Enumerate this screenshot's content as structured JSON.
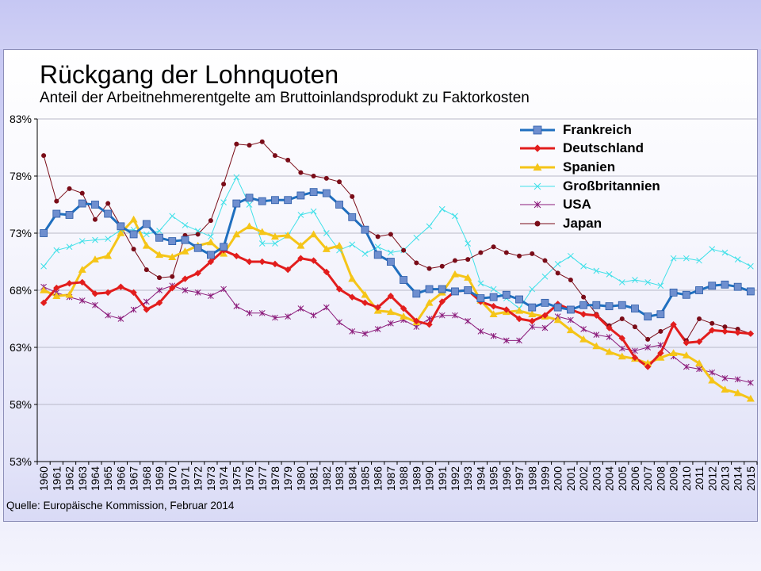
{
  "title": "Rückgang der Lohnquoten",
  "subtitle": "Anteil der Arbeitnehmerentgelte am Bruttoinlandsprodukt zu Faktorkosten",
  "source": "Quelle: Europäische Kommission, Februar 2014",
  "chart_data": {
    "type": "line",
    "title": "Rückgang der Lohnquoten",
    "subtitle": "Anteil der Arbeitnehmerentgelte am Bruttoinlandsprodukt zu Faktorkosten",
    "xlabel": "",
    "ylabel": "",
    "ylim": [
      53,
      83
    ],
    "yticks": [
      83,
      78,
      73,
      68,
      63,
      58,
      53
    ],
    "ytick_labels": [
      "83%",
      "78%",
      "73%",
      "68%",
      "63%",
      "58%",
      "53%"
    ],
    "grid": "horizontal",
    "legend_position": "top-right",
    "x": [
      "1960",
      "1961",
      "1962",
      "1963",
      "1964",
      "1965",
      "1966",
      "1967",
      "1968",
      "1969",
      "1970",
      "1971",
      "1972",
      "1973",
      "1974",
      "1975",
      "1976",
      "1977",
      "1978",
      "1979",
      "1980",
      "1981",
      "1982",
      "1983",
      "1984",
      "1985",
      "1986",
      "1987",
      "1988",
      "1989",
      "1990",
      "1991",
      "1992",
      "1993",
      "1994",
      "1995",
      "1996",
      "1997",
      "1998",
      "1999",
      "2000",
      "2001",
      "2002",
      "2003",
      "2004",
      "2005",
      "2006",
      "2007",
      "2008",
      "2009",
      "2010",
      "2011",
      "2012",
      "2013",
      "2014",
      "2015"
    ],
    "series": [
      {
        "name": "Frankreich",
        "color": "#1f6fbf",
        "marker": "square",
        "values": [
          73.0,
          74.7,
          74.6,
          75.6,
          75.5,
          74.7,
          73.6,
          72.9,
          73.8,
          72.6,
          72.3,
          72.4,
          71.7,
          71.1,
          71.8,
          75.6,
          76.1,
          75.8,
          75.9,
          75.9,
          76.3,
          76.6,
          76.5,
          75.5,
          74.4,
          73.3,
          71.1,
          70.5,
          68.9,
          67.7,
          68.1,
          68.1,
          67.9,
          68.0,
          67.3,
          67.4,
          67.6,
          67.2,
          66.5,
          66.9,
          66.5,
          66.3,
          66.7,
          66.7,
          66.6,
          66.7,
          66.4,
          65.7,
          65.9,
          67.8,
          67.6,
          68.0,
          68.4,
          68.5,
          68.3,
          67.9
        ]
      },
      {
        "name": "Deutschland",
        "color": "#e21d1d",
        "marker": "diamond",
        "values": [
          66.9,
          68.2,
          68.6,
          68.7,
          67.7,
          67.8,
          68.3,
          67.8,
          66.3,
          66.9,
          68.2,
          69.0,
          69.5,
          70.5,
          71.5,
          71.0,
          70.5,
          70.5,
          70.3,
          69.8,
          70.8,
          70.6,
          69.6,
          68.1,
          67.4,
          66.9,
          66.5,
          67.5,
          66.4,
          65.3,
          65.0,
          67.0,
          67.9,
          68.0,
          67.0,
          66.6,
          66.3,
          65.5,
          65.3,
          65.8,
          66.8,
          66.3,
          65.9,
          65.8,
          64.7,
          63.8,
          62.1,
          61.3,
          62.5,
          65.0,
          63.4,
          63.5,
          64.5,
          64.4,
          64.3,
          64.2
        ]
      },
      {
        "name": "Spanien",
        "color": "#f5c518",
        "marker": "triangle",
        "values": [
          68.0,
          67.5,
          67.6,
          69.8,
          70.7,
          71.0,
          73.0,
          74.2,
          71.9,
          71.1,
          70.9,
          71.4,
          71.9,
          72.2,
          71.2,
          72.9,
          73.6,
          73.1,
          72.7,
          72.8,
          71.9,
          72.9,
          71.6,
          71.9,
          69.0,
          67.6,
          66.2,
          66.1,
          65.7,
          65.2,
          66.9,
          67.8,
          69.4,
          69.1,
          67.1,
          65.9,
          66.1,
          66.2,
          65.9,
          65.7,
          65.4,
          64.5,
          63.7,
          63.1,
          62.6,
          62.2,
          62.0,
          61.6,
          62.1,
          62.5,
          62.3,
          61.6,
          60.1,
          59.3,
          59.0,
          58.5
        ]
      },
      {
        "name": "Großbritannien",
        "color": "#3fe0e8",
        "marker": "x",
        "values": [
          70.1,
          71.5,
          71.8,
          72.3,
          72.4,
          72.5,
          73.3,
          73.3,
          72.9,
          73.2,
          74.5,
          73.7,
          73.2,
          72.7,
          75.7,
          77.9,
          75.5,
          72.1,
          72.1,
          72.8,
          74.6,
          74.9,
          73.0,
          71.5,
          72.0,
          71.2,
          71.8,
          71.3,
          71.5,
          72.6,
          73.6,
          75.1,
          74.5,
          72.1,
          68.6,
          68.1,
          67.3,
          66.4,
          68.1,
          69.2,
          70.3,
          71.0,
          70.1,
          69.7,
          69.4,
          68.7,
          68.9,
          68.7,
          68.4,
          70.8,
          70.8,
          70.6,
          71.6,
          71.3,
          70.7,
          70.1
        ]
      },
      {
        "name": "USA",
        "color": "#8b1a7a",
        "marker": "star",
        "values": [
          68.3,
          67.8,
          67.4,
          67.1,
          66.7,
          65.8,
          65.5,
          66.3,
          67.0,
          68.0,
          68.4,
          68.0,
          67.8,
          67.5,
          68.1,
          66.6,
          66.0,
          66.0,
          65.6,
          65.7,
          66.4,
          65.8,
          66.5,
          65.2,
          64.4,
          64.2,
          64.6,
          65.1,
          65.4,
          64.8,
          65.5,
          65.8,
          65.8,
          65.3,
          64.4,
          64.0,
          63.6,
          63.6,
          64.8,
          64.7,
          65.7,
          65.4,
          64.6,
          64.1,
          63.9,
          62.9,
          62.7,
          63.0,
          63.2,
          62.2,
          61.3,
          61.1,
          60.8,
          60.3,
          60.2,
          59.9
        ]
      },
      {
        "name": "Japan",
        "color": "#7a0c18",
        "marker": "circle",
        "values": [
          79.8,
          75.8,
          76.9,
          76.5,
          74.2,
          75.6,
          73.6,
          71.6,
          69.8,
          69.1,
          69.2,
          72.8,
          72.9,
          74.1,
          77.3,
          80.8,
          80.7,
          81.0,
          79.8,
          79.4,
          78.3,
          78.0,
          77.8,
          77.5,
          76.2,
          73.4,
          72.7,
          72.9,
          71.5,
          70.4,
          69.9,
          70.1,
          70.6,
          70.7,
          71.3,
          71.8,
          71.3,
          71.0,
          71.2,
          70.6,
          69.5,
          68.9,
          67.4,
          65.9,
          64.9,
          65.5,
          64.8,
          63.7,
          64.4,
          65.0,
          63.6,
          65.5,
          65.1,
          64.8,
          64.6,
          64.2
        ]
      }
    ]
  }
}
